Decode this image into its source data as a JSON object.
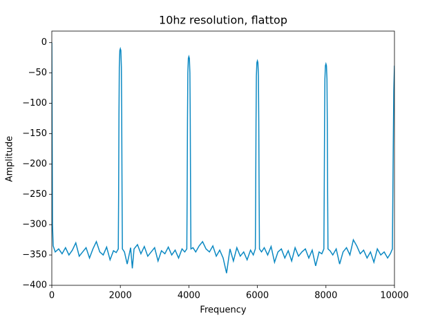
{
  "chart_data": {
    "type": "line",
    "title": "10hz resolution, flattop",
    "x_label": "Frequency",
    "y_label": "Amplitude",
    "xlim": [
      0,
      10000
    ],
    "ylim": [
      -400,
      19
    ],
    "xticks": [
      0,
      2000,
      4000,
      6000,
      8000,
      10000
    ],
    "yticks": [
      {
        "value": 0,
        "label": "0"
      },
      {
        "value": -50,
        "label": "−50"
      },
      {
        "value": -100,
        "label": "−100"
      },
      {
        "value": -150,
        "label": "−150"
      },
      {
        "value": -200,
        "label": "−200"
      },
      {
        "value": -250,
        "label": "−250"
      },
      {
        "value": -300,
        "label": "−300"
      },
      {
        "value": -350,
        "label": "−350"
      },
      {
        "value": -400,
        "label": "−400"
      }
    ],
    "x": [
      0,
      10,
      20,
      40,
      100,
      200,
      300,
      400,
      500,
      600,
      700,
      800,
      900,
      1000,
      1100,
      1200,
      1300,
      1400,
      1500,
      1600,
      1700,
      1800,
      1880,
      1940,
      1950,
      1960,
      1970,
      1985,
      2000,
      2015,
      2030,
      2040,
      2050,
      2060,
      2120,
      2200,
      2300,
      2350,
      2400,
      2500,
      2600,
      2700,
      2800,
      2900,
      3000,
      3100,
      3200,
      3300,
      3400,
      3500,
      3600,
      3700,
      3800,
      3880,
      3940,
      3950,
      3960,
      3970,
      3985,
      4000,
      4015,
      4030,
      4040,
      4050,
      4060,
      4120,
      4200,
      4300,
      4400,
      4500,
      4600,
      4700,
      4800,
      4900,
      5000,
      5100,
      5200,
      5300,
      5400,
      5500,
      5600,
      5700,
      5800,
      5880,
      5940,
      5950,
      5960,
      5970,
      5985,
      6000,
      6015,
      6030,
      6040,
      6050,
      6060,
      6120,
      6200,
      6300,
      6400,
      6500,
      6600,
      6700,
      6800,
      6900,
      7000,
      7100,
      7200,
      7300,
      7400,
      7500,
      7600,
      7700,
      7800,
      7880,
      7940,
      7950,
      7960,
      7970,
      7985,
      8000,
      8015,
      8030,
      8040,
      8050,
      8060,
      8120,
      8200,
      8300,
      8400,
      8500,
      8600,
      8700,
      8800,
      8900,
      9000,
      9100,
      9200,
      9300,
      9400,
      9500,
      9600,
      9700,
      9800,
      9880,
      9940,
      9960,
      9980,
      10000
    ],
    "series": [
      {
        "color": "#0a88c2",
        "values": [
          0,
          -150,
          -300,
          -335,
          -345,
          -340,
          -348,
          -338,
          -350,
          -342,
          -330,
          -352,
          -345,
          -338,
          -355,
          -340,
          -328,
          -345,
          -350,
          -337,
          -358,
          -343,
          -346,
          -340,
          -250,
          -120,
          -40,
          -13,
          -10,
          -13,
          -40,
          -120,
          -250,
          -340,
          -345,
          -365,
          -338,
          -372,
          -340,
          -333,
          -348,
          -336,
          -352,
          -345,
          -338,
          -360,
          -343,
          -348,
          -337,
          -350,
          -342,
          -355,
          -340,
          -345,
          -340,
          -250,
          -125,
          -50,
          -26,
          -23,
          -26,
          -50,
          -125,
          -250,
          -340,
          -338,
          -345,
          -335,
          -328,
          -340,
          -345,
          -335,
          -352,
          -342,
          -355,
          -380,
          -340,
          -360,
          -338,
          -352,
          -345,
          -358,
          -342,
          -350,
          -340,
          -250,
          -130,
          -55,
          -33,
          -30,
          -33,
          -55,
          -130,
          -250,
          -340,
          -345,
          -338,
          -350,
          -336,
          -362,
          -345,
          -340,
          -355,
          -343,
          -360,
          -338,
          -352,
          -345,
          -340,
          -355,
          -342,
          -368,
          -345,
          -348,
          -340,
          -250,
          -135,
          -60,
          -38,
          -35,
          -38,
          -60,
          -135,
          -250,
          -340,
          -343,
          -350,
          -340,
          -365,
          -345,
          -338,
          -350,
          -325,
          -335,
          -348,
          -342,
          -355,
          -345,
          -362,
          -340,
          -350,
          -345,
          -355,
          -348,
          -340,
          -200,
          -80,
          -38
        ]
      }
    ]
  }
}
